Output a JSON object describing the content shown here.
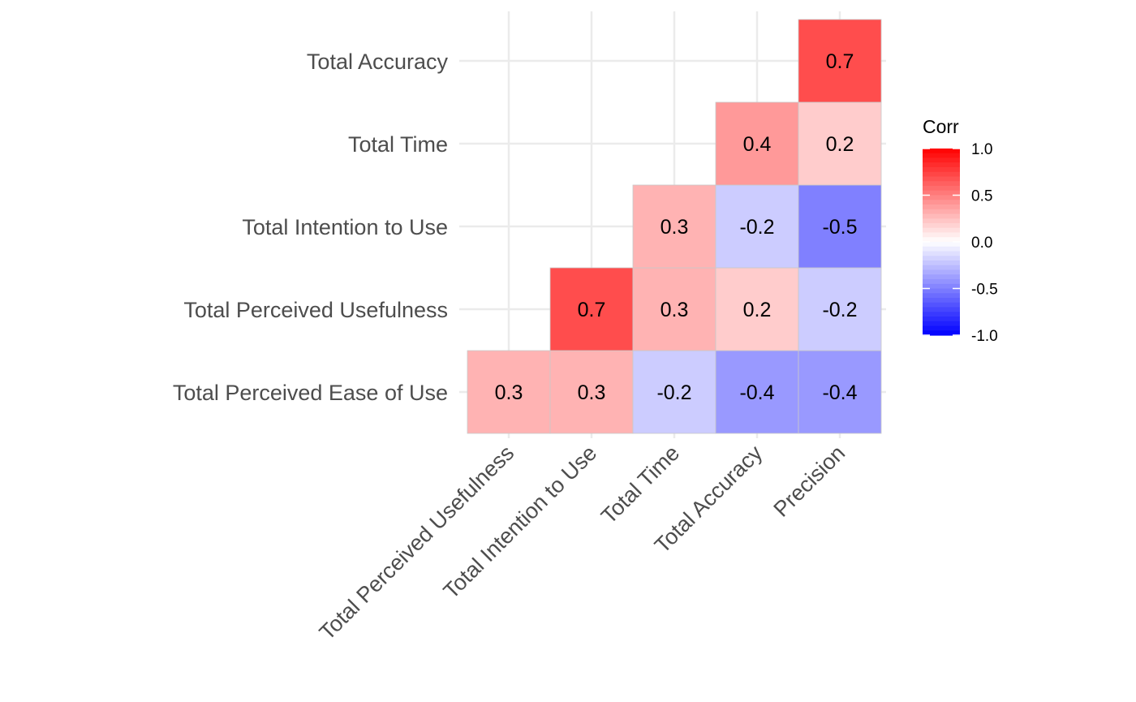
{
  "chart_data": {
    "type": "heatmap",
    "x_categories": [
      "Total Perceived Usefulness",
      "Total Intention to Use",
      "Total Time",
      "Total Accuracy",
      "Precision"
    ],
    "y_categories": [
      "Total Perceived Ease of Use",
      "Total Perceived Usefulness",
      "Total Intention to Use",
      "Total Time",
      "Total Accuracy"
    ],
    "cells": [
      {
        "x": "Total Perceived Usefulness",
        "y": "Total Perceived Ease of Use",
        "value": 0.3
      },
      {
        "x": "Total Intention to Use",
        "y": "Total Perceived Ease of Use",
        "value": 0.3
      },
      {
        "x": "Total Time",
        "y": "Total Perceived Ease of Use",
        "value": -0.2
      },
      {
        "x": "Total Accuracy",
        "y": "Total Perceived Ease of Use",
        "value": -0.4
      },
      {
        "x": "Precision",
        "y": "Total Perceived Ease of Use",
        "value": -0.4
      },
      {
        "x": "Total Intention to Use",
        "y": "Total Perceived Usefulness",
        "value": 0.7
      },
      {
        "x": "Total Time",
        "y": "Total Perceived Usefulness",
        "value": 0.3
      },
      {
        "x": "Total Accuracy",
        "y": "Total Perceived Usefulness",
        "value": 0.2
      },
      {
        "x": "Precision",
        "y": "Total Perceived Usefulness",
        "value": -0.2
      },
      {
        "x": "Total Time",
        "y": "Total Intention to Use",
        "value": 0.3
      },
      {
        "x": "Total Accuracy",
        "y": "Total Intention to Use",
        "value": -0.2
      },
      {
        "x": "Precision",
        "y": "Total Intention to Use",
        "value": -0.5
      },
      {
        "x": "Total Accuracy",
        "y": "Total Time",
        "value": 0.4
      },
      {
        "x": "Precision",
        "y": "Total Time",
        "value": 0.2
      },
      {
        "x": "Precision",
        "y": "Total Accuracy",
        "value": 0.7
      }
    ],
    "legend": {
      "title": "Corr",
      "ticks": [
        "1.0",
        "0.5",
        "0.0",
        "-0.5",
        "-1.0"
      ],
      "tick_values": [
        1.0,
        0.5,
        0.0,
        -0.5,
        -1.0
      ],
      "range": [
        -1,
        1
      ],
      "placement": "right"
    },
    "colors": {
      "low": "#0000ff",
      "mid": "#ffffff",
      "high": "#ff0000"
    },
    "grid": true,
    "title": "",
    "xlabel": "",
    "ylabel": ""
  }
}
